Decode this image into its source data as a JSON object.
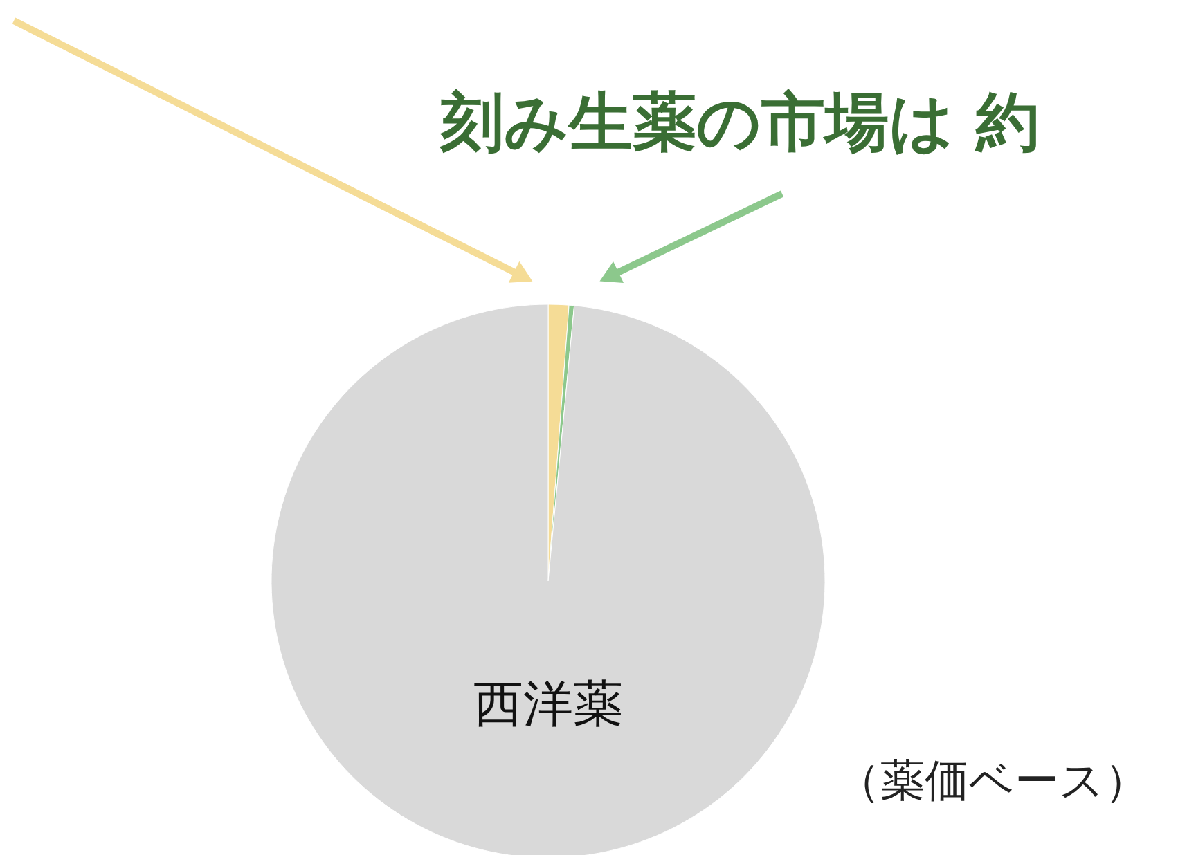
{
  "chart_data": {
    "type": "pie",
    "title": "刻み生薬の市場は 約",
    "categories": [
      null,
      null,
      "西洋薬"
    ],
    "values": [
      1.2,
      0.3,
      98.5
    ],
    "colors": [
      "#f5dc96",
      "#8cc88c",
      "#d9d9d9"
    ],
    "annotations": [
      "（薬価ベース）"
    ]
  }
}
